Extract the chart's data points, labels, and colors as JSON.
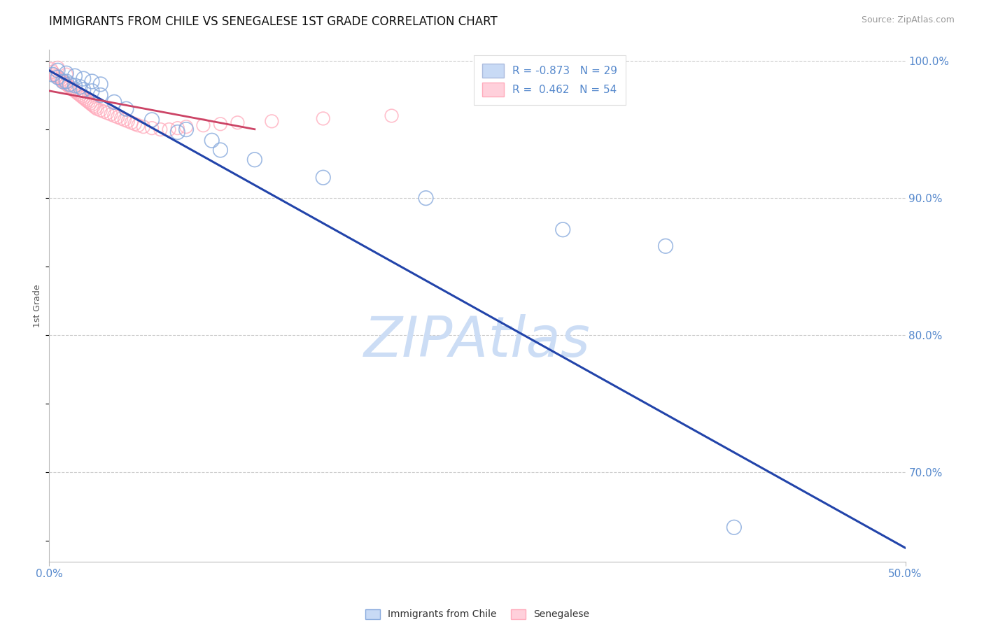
{
  "title": "IMMIGRANTS FROM CHILE VS SENEGALESE 1ST GRADE CORRELATION CHART",
  "source_text": "Source: ZipAtlas.com",
  "ylabel": "1st Grade",
  "xlim": [
    0.0,
    0.5
  ],
  "ylim": [
    0.635,
    1.008
  ],
  "xtick_positions": [
    0.0,
    0.5
  ],
  "xtick_labels": [
    "0.0%",
    "50.0%"
  ],
  "yticks_right": [
    0.7,
    0.8,
    0.9,
    1.0
  ],
  "ytick_labels_right": [
    "70.0%",
    "80.0%",
    "90.0%",
    "100.0%"
  ],
  "grid_yticks": [
    1.0,
    0.9,
    0.8,
    0.7
  ],
  "background_color": "#ffffff",
  "watermark_text": "ZIPAtlas",
  "watermark_color": "#ccddf5",
  "legend_R1": "-0.873",
  "legend_N1": "29",
  "legend_R2": "0.462",
  "legend_N2": "54",
  "blue_color": "#88aadd",
  "pink_color": "#ffaabb",
  "trend_blue_color": "#2244aa",
  "blue_trend_x": [
    0.0,
    0.5
  ],
  "blue_trend_y": [
    0.993,
    0.645
  ],
  "blue_scatter_x": [
    0.002,
    0.005,
    0.008,
    0.01,
    0.012,
    0.015,
    0.018,
    0.02,
    0.025,
    0.03,
    0.038,
    0.045,
    0.06,
    0.075,
    0.1,
    0.12,
    0.16,
    0.22,
    0.3,
    0.36,
    0.005,
    0.01,
    0.015,
    0.02,
    0.025,
    0.03,
    0.08,
    0.095,
    0.4
  ],
  "blue_scatter_y": [
    0.99,
    0.988,
    0.985,
    0.985,
    0.983,
    0.982,
    0.981,
    0.979,
    0.978,
    0.975,
    0.97,
    0.965,
    0.957,
    0.948,
    0.935,
    0.928,
    0.915,
    0.9,
    0.877,
    0.865,
    0.993,
    0.991,
    0.989,
    0.987,
    0.985,
    0.983,
    0.95,
    0.942,
    0.66
  ],
  "pink_scatter_x": [
    0.001,
    0.002,
    0.003,
    0.004,
    0.005,
    0.006,
    0.007,
    0.008,
    0.009,
    0.01,
    0.011,
    0.012,
    0.013,
    0.014,
    0.015,
    0.016,
    0.017,
    0.018,
    0.019,
    0.02,
    0.021,
    0.022,
    0.023,
    0.024,
    0.025,
    0.026,
    0.027,
    0.028,
    0.03,
    0.032,
    0.034,
    0.036,
    0.038,
    0.04,
    0.042,
    0.044,
    0.046,
    0.048,
    0.05,
    0.052,
    0.055,
    0.06,
    0.065,
    0.07,
    0.075,
    0.08,
    0.09,
    0.1,
    0.11,
    0.13,
    0.16,
    0.2,
    0.005,
    0.01
  ],
  "pink_scatter_y": [
    0.994,
    0.992,
    0.99,
    0.989,
    0.988,
    0.987,
    0.986,
    0.985,
    0.984,
    0.983,
    0.982,
    0.981,
    0.98,
    0.979,
    0.978,
    0.977,
    0.976,
    0.975,
    0.974,
    0.973,
    0.972,
    0.971,
    0.97,
    0.969,
    0.968,
    0.967,
    0.966,
    0.965,
    0.964,
    0.963,
    0.962,
    0.961,
    0.96,
    0.959,
    0.958,
    0.957,
    0.956,
    0.955,
    0.954,
    0.953,
    0.952,
    0.951,
    0.95,
    0.95,
    0.951,
    0.952,
    0.953,
    0.954,
    0.955,
    0.956,
    0.958,
    0.96,
    0.995,
    0.99
  ]
}
